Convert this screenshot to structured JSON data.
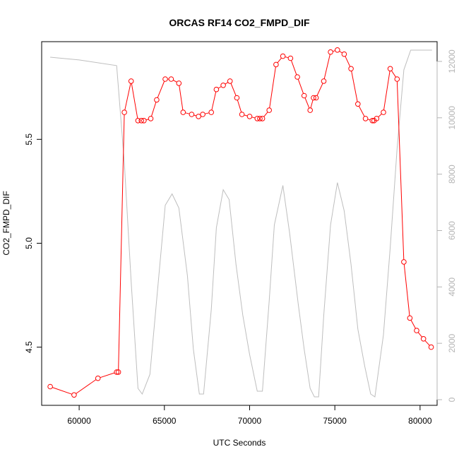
{
  "chart_data": {
    "type": "line",
    "title": "ORCAS RF14 CO2_FMPD_DIF",
    "xlabel": "UTC Seconds",
    "ylabel": "CO2_FMPD_DIF",
    "xlim": [
      57800,
      81000
    ],
    "ylim": [
      4.22,
      5.97
    ],
    "y2lim": [
      -200,
      12700
    ],
    "x_ticks": [
      60000,
      65000,
      70000,
      75000,
      80000
    ],
    "y_ticks": [
      4.5,
      5.0,
      5.5
    ],
    "y2_ticks": [
      0,
      2000,
      4000,
      6000,
      8000,
      10000,
      12000
    ],
    "colors": {
      "co2": "#ff0000",
      "altitude": "#bebebe"
    },
    "series": [
      {
        "axis": "left",
        "x": [
          58300,
          59700,
          61100,
          62200,
          62300,
          62650,
          63050,
          63450,
          63650,
          63800,
          64200,
          64550,
          65050,
          65400,
          65850,
          66100,
          66600,
          67000,
          67250,
          67750,
          68050,
          68450,
          68850,
          69250,
          69550,
          70000,
          70450,
          70600,
          70750,
          71150,
          71550,
          71950,
          72400,
          72800,
          73200,
          73550,
          73750,
          73900,
          74350,
          74750,
          75150,
          75550,
          75950,
          76350,
          76800,
          77200,
          77300,
          77450,
          77850,
          78250,
          78650,
          79050,
          79400,
          79800,
          80200,
          80650
        ],
        "values": [
          4.31,
          4.27,
          4.35,
          4.38,
          4.38,
          5.63,
          5.78,
          5.59,
          5.59,
          5.59,
          5.6,
          5.69,
          5.79,
          5.79,
          5.77,
          5.63,
          5.62,
          5.61,
          5.62,
          5.63,
          5.74,
          5.76,
          5.78,
          5.7,
          5.62,
          5.61,
          5.6,
          5.6,
          5.6,
          5.64,
          5.86,
          5.9,
          5.89,
          5.8,
          5.71,
          5.64,
          5.7,
          5.7,
          5.78,
          5.92,
          5.93,
          5.91,
          5.84,
          5.67,
          5.6,
          5.59,
          5.59,
          5.6,
          5.63,
          5.84,
          5.79,
          4.91,
          4.64,
          4.58,
          4.54,
          4.5
        ]
      },
      {
        "axis": "right",
        "x": [
          58300,
          60000,
          62200,
          62650,
          63050,
          63450,
          63700,
          64150,
          65050,
          65450,
          65850,
          66350,
          66700,
          67050,
          67300,
          67750,
          68050,
          68450,
          68800,
          69200,
          69600,
          70000,
          70450,
          70750,
          71150,
          71450,
          71950,
          72350,
          72850,
          73200,
          73550,
          73800,
          74050,
          74350,
          74750,
          75150,
          75550,
          75950,
          76350,
          76750,
          77100,
          77350,
          77850,
          78250,
          78650,
          79050,
          79450,
          80700
        ],
        "values": [
          12150,
          12050,
          11850,
          8400,
          4200,
          400,
          200,
          900,
          6900,
          7300,
          6800,
          4400,
          1800,
          200,
          200,
          3200,
          6100,
          7450,
          7100,
          4800,
          3000,
          1600,
          300,
          300,
          3500,
          6200,
          7600,
          5900,
          3400,
          1800,
          400,
          100,
          100,
          3000,
          6200,
          7700,
          6700,
          4800,
          2500,
          1200,
          200,
          100,
          2300,
          5400,
          8900,
          11700,
          12400,
          12400
        ]
      }
    ]
  }
}
